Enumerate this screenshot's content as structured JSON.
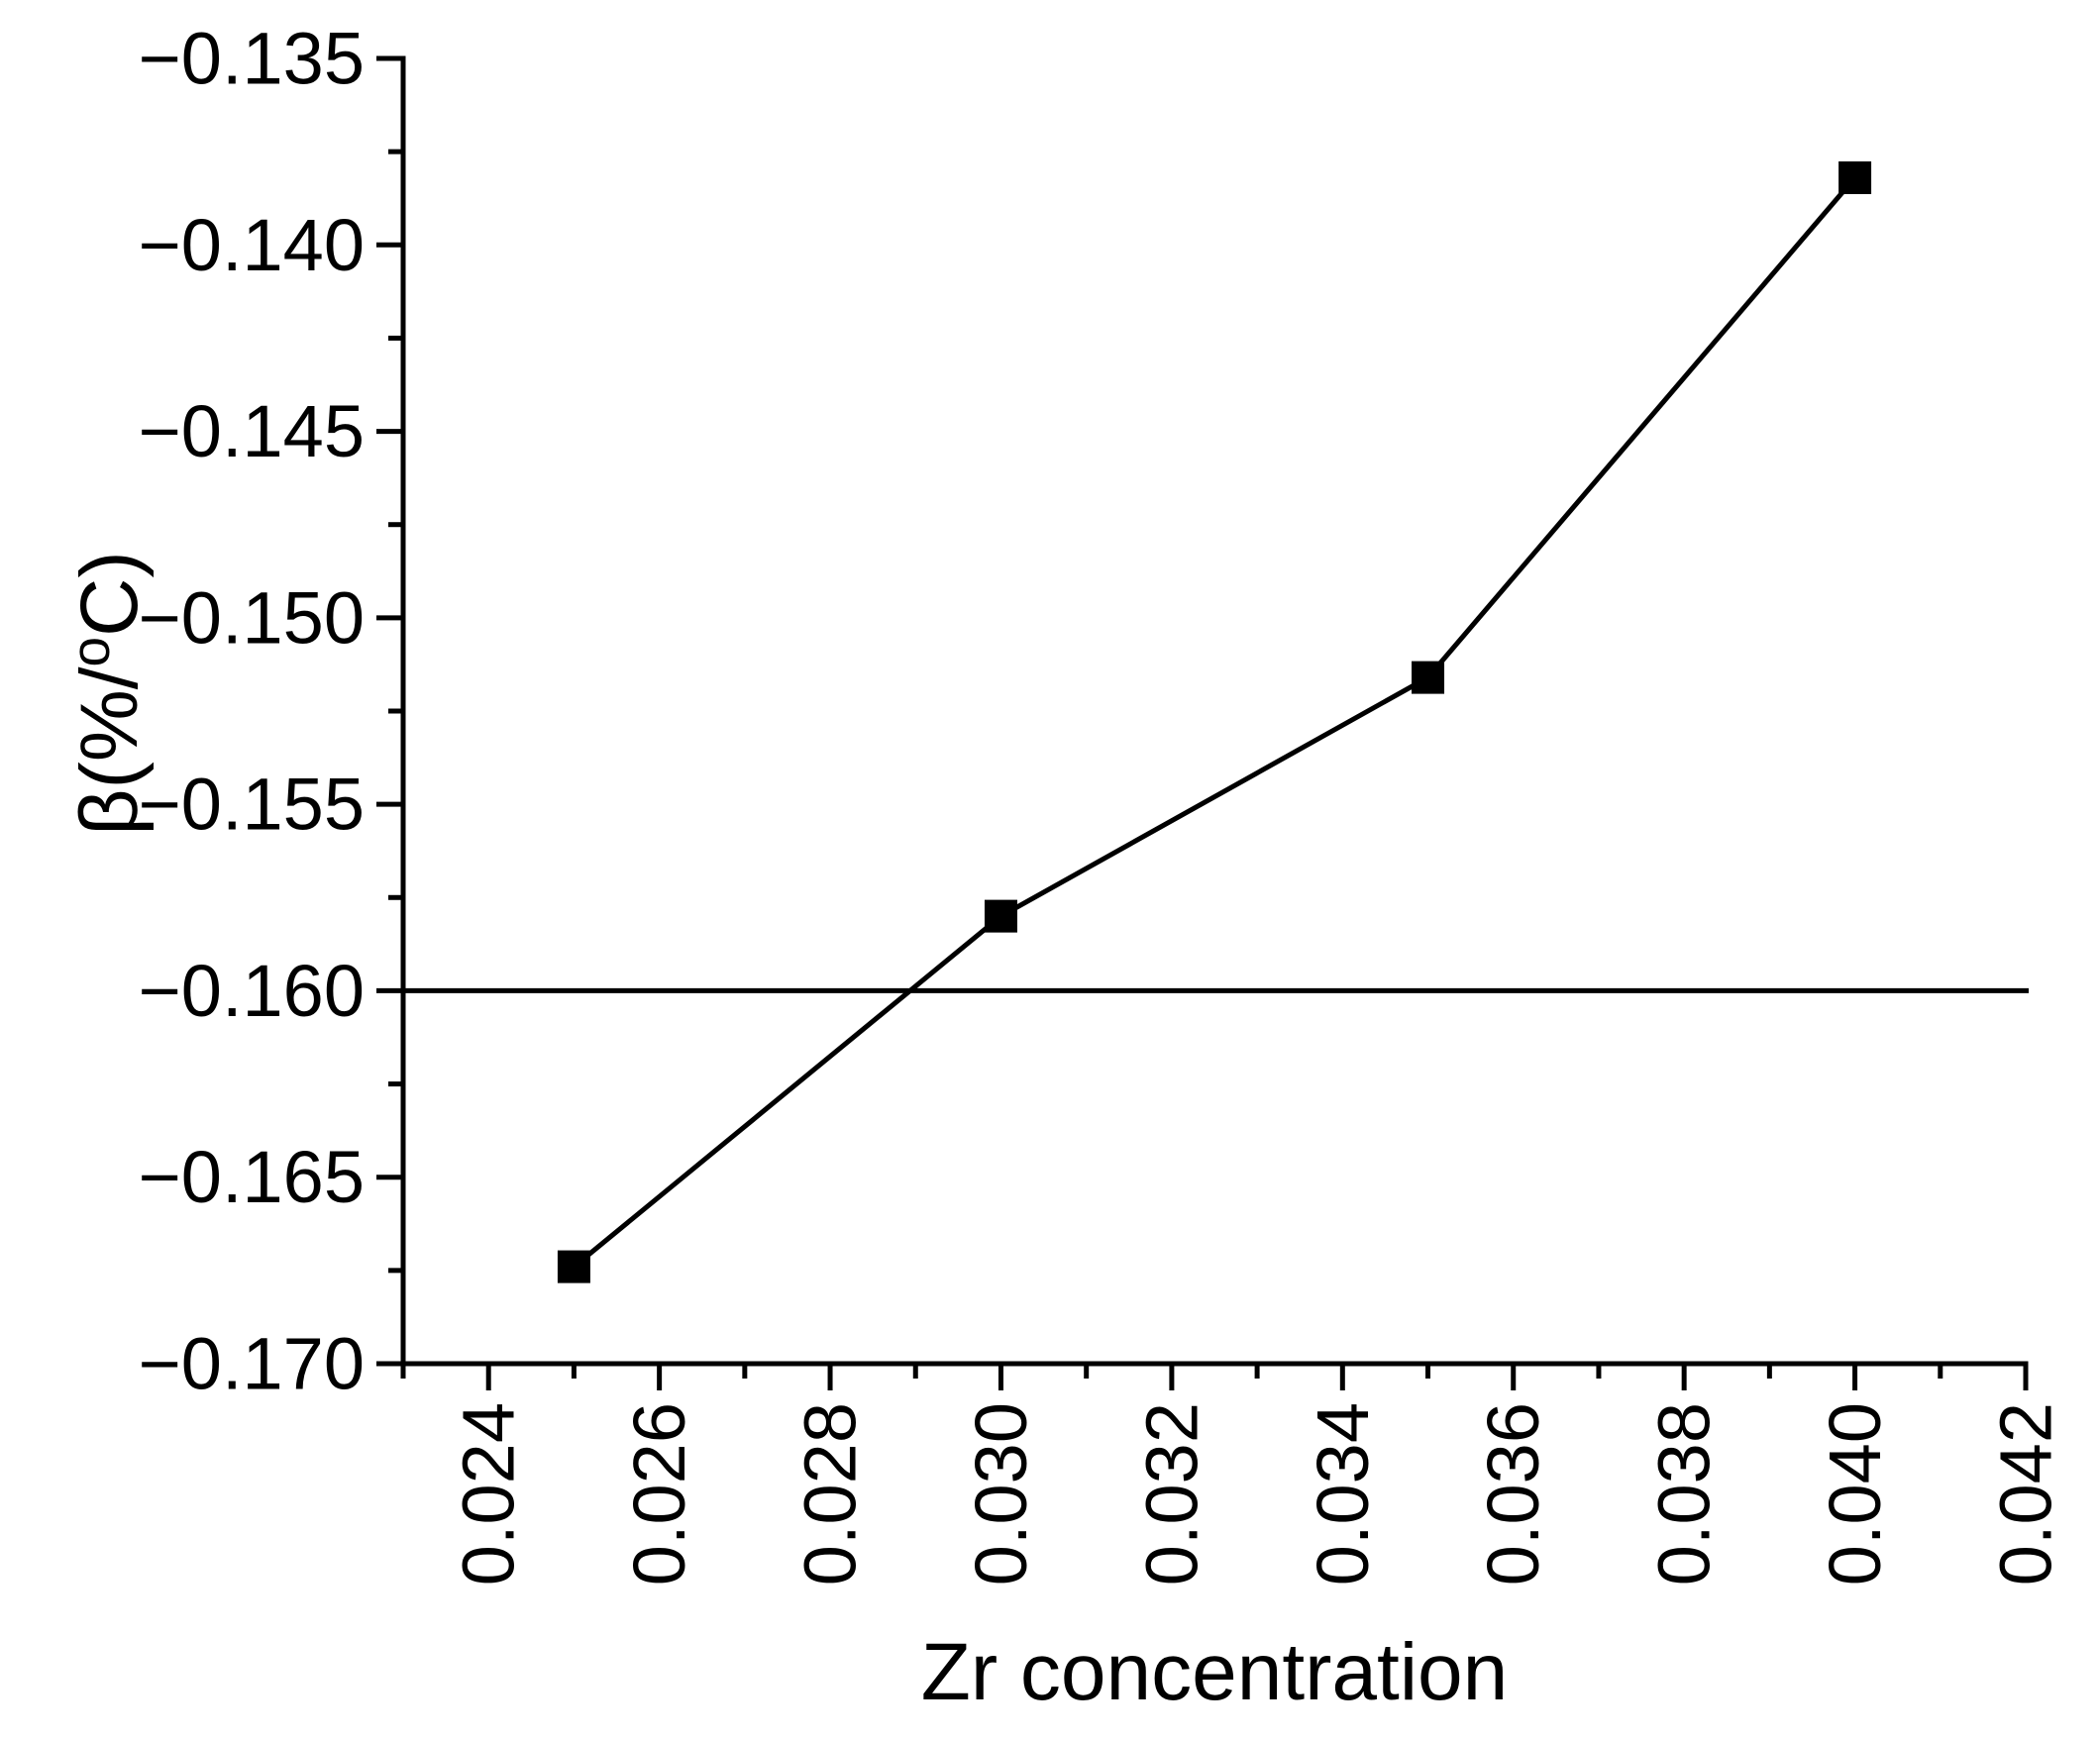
{
  "chart_data": {
    "type": "line",
    "xlabel": "Zr concentration",
    "ylabel": "β(%/°C)",
    "ylabel_parts": {
      "prefix": "β(%/",
      "sup": "o",
      "suffix": "C)"
    },
    "series": [
      {
        "name": "beta-vs-zr-concentration",
        "marker": "square",
        "color": "#000000",
        "x": [
          0.025,
          0.03,
          0.035,
          0.04
        ],
        "y": [
          -0.1674,
          -0.158,
          -0.1516,
          -0.1382
        ]
      }
    ],
    "reference_line": {
      "y": -0.16,
      "color": "#000000"
    },
    "xlim": [
      0.023,
      0.042
    ],
    "ylim": [
      -0.17,
      -0.135
    ],
    "x_major_ticks": [
      0.024,
      0.026,
      0.028,
      0.03,
      0.032,
      0.034,
      0.036,
      0.038,
      0.04,
      0.042
    ],
    "x_tick_labels": [
      "0.024",
      "0.026",
      "0.028",
      "0.030",
      "0.032",
      "0.034",
      "0.036",
      "0.038",
      "0.040",
      "0.042"
    ],
    "x_minor_ticks": [
      0.023,
      0.025,
      0.027,
      0.029,
      0.031,
      0.033,
      0.035,
      0.037,
      0.039,
      0.041
    ],
    "y_major_ticks": [
      -0.135,
      -0.14,
      -0.145,
      -0.15,
      -0.155,
      -0.16,
      -0.165,
      -0.17
    ],
    "y_tick_labels": [
      "−0.135",
      "−0.140",
      "−0.145",
      "−0.150",
      "−0.155",
      "−0.160",
      "−0.165",
      "−0.170"
    ],
    "y_minor_ticks": [
      -0.1375,
      -0.1425,
      -0.1475,
      -0.1525,
      -0.1575,
      -0.1625,
      -0.1675
    ],
    "x_tick_label_rotation": 90,
    "grid": false,
    "legend": null,
    "axis_color": "#000000",
    "background_color": "#ffffff"
  }
}
